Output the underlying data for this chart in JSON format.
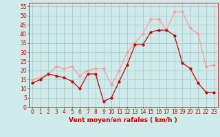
{
  "hours": [
    0,
    1,
    2,
    3,
    4,
    5,
    6,
    7,
    8,
    9,
    10,
    11,
    12,
    13,
    14,
    15,
    16,
    17,
    18,
    19,
    20,
    21,
    22,
    23
  ],
  "wind_avg": [
    13,
    15,
    18,
    17,
    16,
    14,
    10,
    18,
    18,
    3,
    5,
    14,
    23,
    34,
    34,
    41,
    42,
    42,
    39,
    24,
    21,
    13,
    8,
    8
  ],
  "wind_gust": [
    15,
    16,
    18,
    22,
    21,
    22,
    17,
    20,
    21,
    21,
    12,
    20,
    30,
    35,
    40,
    48,
    48,
    42,
    52,
    52,
    43,
    40,
    22,
    23
  ],
  "bg_color": "#ceeaea",
  "grid_color": "#aacccc",
  "avg_color": "#cc0000",
  "gust_color": "#ff9999",
  "xlabel": "Vent moyen/en rafales ( km/h )",
  "ylim": [
    0,
    57
  ],
  "yticks": [
    0,
    5,
    10,
    15,
    20,
    25,
    30,
    35,
    40,
    45,
    50,
    55
  ],
  "axis_fontsize": 5.5,
  "xlabel_fontsize": 6.5
}
